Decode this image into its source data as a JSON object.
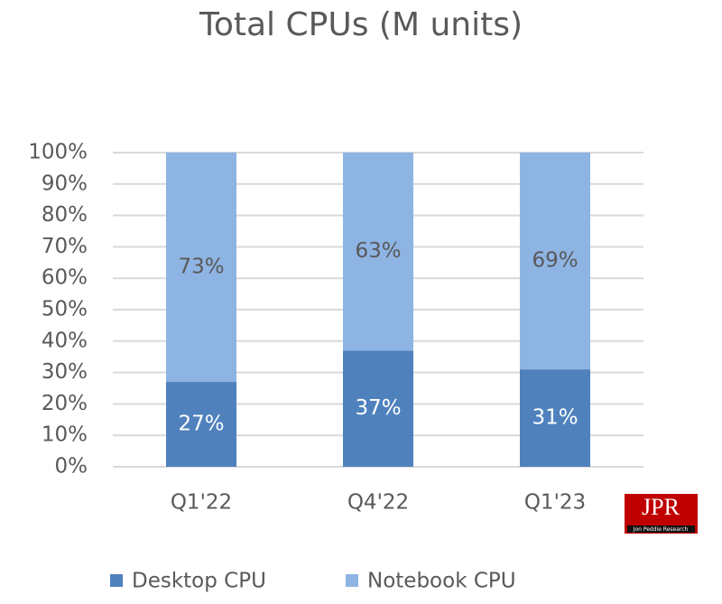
{
  "chart_data": {
    "type": "stacked_bar",
    "title": "Total CPUs (M units)",
    "categories": [
      "Q1'22",
      "Q4'22",
      "Q1'23"
    ],
    "series": [
      {
        "name": "Desktop CPU",
        "color": "#4f81bd",
        "values": [
          27,
          37,
          31
        ],
        "value_labels": [
          "27%",
          "37%",
          "31%"
        ]
      },
      {
        "name": "Notebook CPU",
        "color": "#8eb4e3",
        "values": [
          73,
          63,
          69
        ],
        "value_labels": [
          "73%",
          "63%",
          "69%"
        ]
      }
    ],
    "ylim": [
      0,
      100
    ],
    "yticks": [
      {
        "value": 0,
        "label": "0%"
      },
      {
        "value": 10,
        "label": "10%"
      },
      {
        "value": 20,
        "label": "20%"
      },
      {
        "value": 30,
        "label": "30%"
      },
      {
        "value": 40,
        "label": "40%"
      },
      {
        "value": 50,
        "label": "50%"
      },
      {
        "value": 60,
        "label": "60%"
      },
      {
        "value": 70,
        "label": "70%"
      },
      {
        "value": 80,
        "label": "80%"
      },
      {
        "value": 90,
        "label": "90%"
      },
      {
        "value": 100,
        "label": "100%"
      }
    ],
    "grid": true,
    "legend": "bottom"
  },
  "logo": {
    "text": "JPR",
    "subtitle": "Jon Peddie Research"
  }
}
